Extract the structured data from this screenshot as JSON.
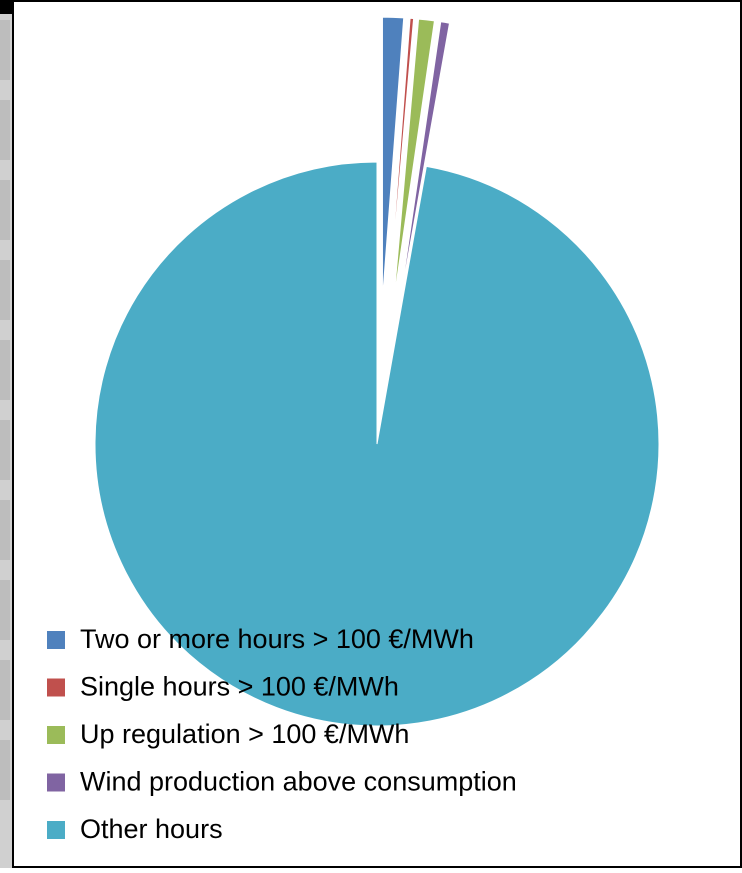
{
  "chart_data": {
    "type": "pie",
    "categories": [
      "Two or more  hours > 100 €/MWh",
      "Single hours > 100 €/MWh",
      "Up regulation > 100 €/MWh",
      "Wind production above  consumption",
      "Other hours"
    ],
    "values": [
      1.2,
      0.2,
      0.9,
      0.5,
      97.2
    ],
    "colors": [
      "#4f81bd",
      "#c0504d",
      "#9bbb59",
      "#8064a2",
      "#4bacc6"
    ],
    "exploded": [
      true,
      true,
      true,
      true,
      false
    ],
    "legend": "bottom-left"
  }
}
